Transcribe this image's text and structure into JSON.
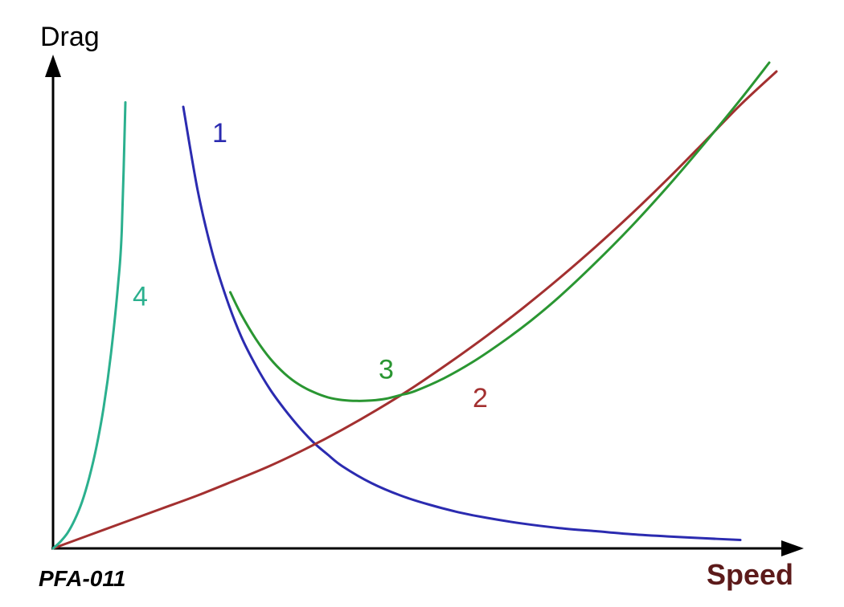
{
  "chart_data": {
    "type": "line",
    "title": "",
    "xlabel": "Speed",
    "ylabel": "Drag",
    "xlim": [
      0,
      100
    ],
    "ylim": [
      0,
      100
    ],
    "grid": false,
    "legend": "none",
    "ticks": "none",
    "series": [
      {
        "name": "1",
        "color": "#2b2bb0",
        "x": [
          18,
          20,
          22,
          24,
          26,
          28,
          30,
          32,
          34,
          36,
          38,
          40,
          44,
          48,
          52,
          56,
          60,
          65,
          70,
          75,
          80,
          85,
          90,
          95
        ],
        "y": [
          100,
          81,
          67,
          56.5,
          48,
          41.5,
          36,
          31.5,
          27.5,
          24,
          21.2,
          18.6,
          14.8,
          12,
          9.9,
          8.2,
          6.9,
          5.6,
          4.6,
          3.9,
          3.2,
          2.7,
          2.3,
          1.9
        ]
      },
      {
        "name": "2",
        "color": "#a33030",
        "x": [
          0,
          5,
          10,
          15,
          20,
          25,
          30,
          35,
          40,
          45,
          50,
          55,
          60,
          65,
          70,
          75,
          80,
          85,
          90,
          95,
          100
        ],
        "y": [
          0,
          3,
          6,
          9,
          12,
          15.3,
          18.7,
          22.6,
          26.9,
          31.6,
          36.7,
          42.3,
          48.2,
          54.5,
          61.2,
          68.3,
          75.8,
          83.7,
          92.0,
          100.4,
          108
        ]
      },
      {
        "name": "3",
        "color": "#2a9632",
        "x": [
          24.5,
          26,
          28,
          30,
          32,
          34,
          36,
          38,
          40,
          42,
          44,
          46,
          48,
          50,
          54,
          58,
          62,
          66,
          70,
          75,
          80,
          85,
          90,
          95,
          99
        ],
        "y": [
          58,
          53,
          47.5,
          43,
          39.6,
          37.1,
          35.4,
          34.2,
          33.6,
          33.4,
          33.5,
          33.9,
          34.7,
          35.6,
          38.5,
          42.2,
          46.6,
          51.5,
          57,
          64.7,
          73,
          82,
          91.6,
          101.6,
          110
        ]
      },
      {
        "name": "4",
        "color": "#2bb08e",
        "x": [
          0,
          1,
          2,
          3,
          4,
          5,
          6,
          7,
          8,
          9,
          9.5,
          10
        ],
        "y": [
          0,
          1.5,
          3.5,
          6.5,
          10.5,
          16,
          23,
          32,
          44,
          60,
          72,
          101
        ]
      }
    ],
    "annotations": [
      {
        "text": "1",
        "series": "1",
        "color": "#2b2bb0",
        "x": 22,
        "y": 92
      },
      {
        "text": "2",
        "series": "2",
        "color": "#a33030",
        "x": 58,
        "y": 32
      },
      {
        "text": "3",
        "series": "3",
        "color": "#2a9632",
        "x": 45,
        "y": 38.5
      },
      {
        "text": "4",
        "series": "4",
        "color": "#2bb08e",
        "x": 11,
        "y": 55
      }
    ]
  },
  "footer": {
    "code": "PFA-011"
  },
  "colors": {
    "axis": "#000000",
    "xlabel": "#5c1a1a",
    "ylabel": "#000000",
    "background": "#ffffff"
  }
}
